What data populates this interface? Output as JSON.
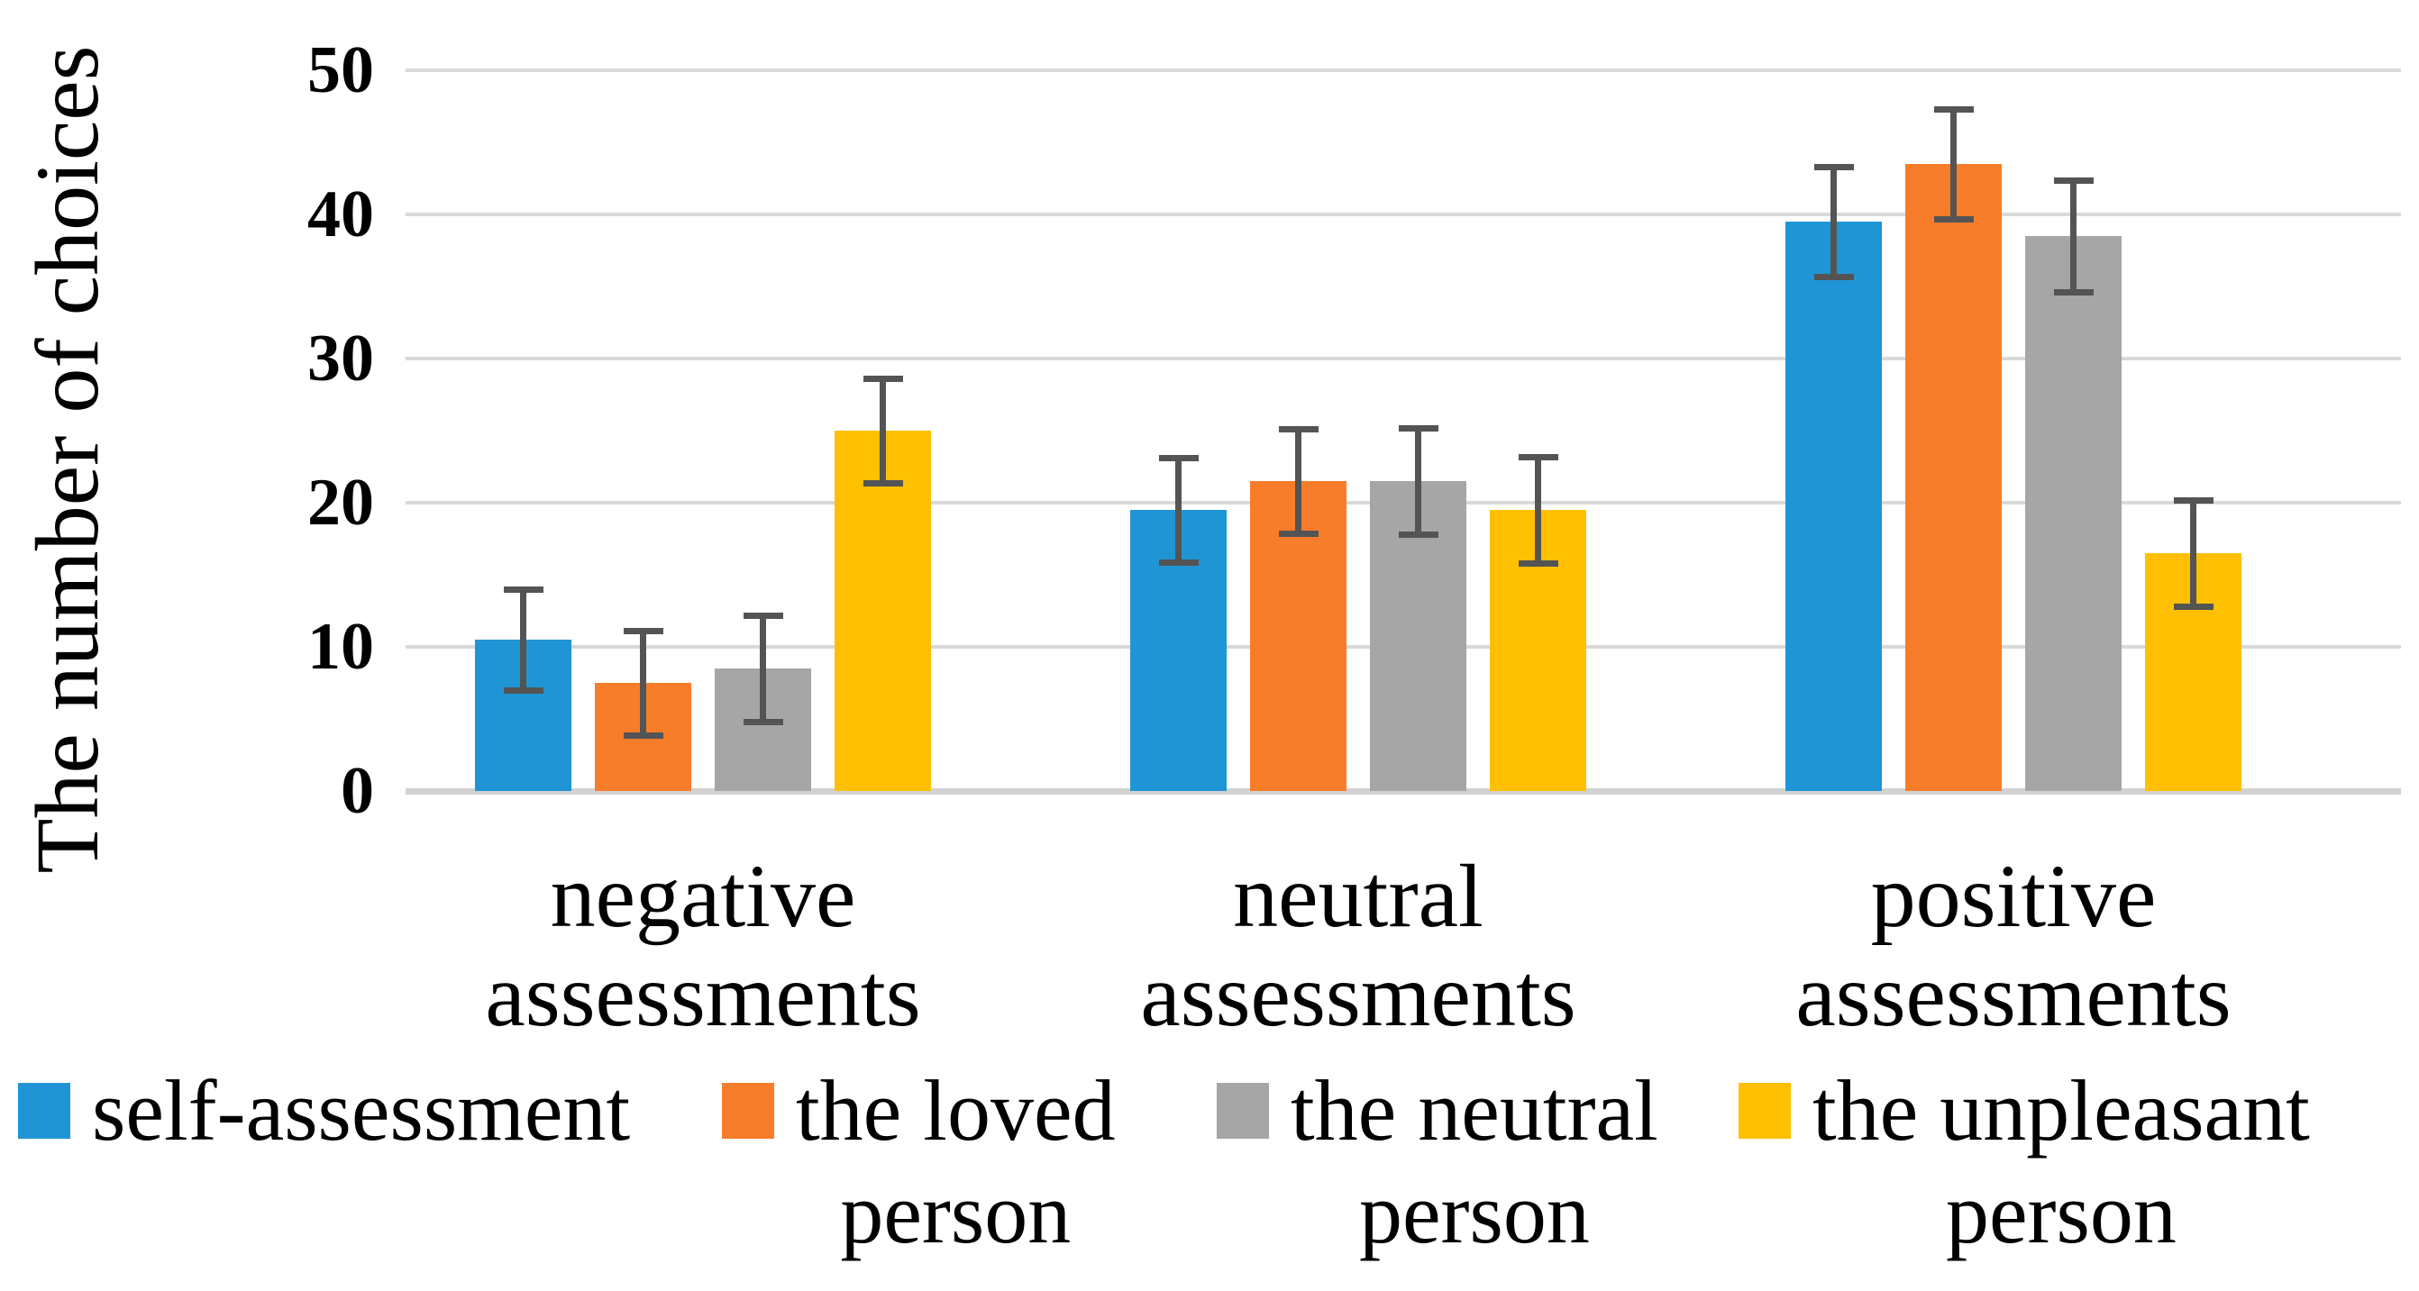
{
  "figure": {
    "ylabel": "The number of choices",
    "background_color": "#ffffff",
    "text_color": "#000000",
    "gridline_color": "#d9d9d9",
    "baseline_color": "#d2d2d2",
    "error_bar_color": "#545454"
  },
  "chart_data": {
    "type": "bar",
    "title": "",
    "xlabel": "",
    "ylabel": "The number of choices",
    "ylim": [
      0,
      50
    ],
    "yticks": [
      0,
      10,
      20,
      30,
      40,
      50
    ],
    "grid": true,
    "legend_position": "bottom",
    "categories": [
      "negative assessments",
      "neutral assessments",
      "positive assessments"
    ],
    "category_label_lines": [
      "negative\nassessments",
      "neutral\nassessments",
      "positive\nassessments"
    ],
    "series": [
      {
        "name": "self-assessment",
        "color": "#2095d5",
        "values": [
          10.5,
          19.5,
          39.5
        ],
        "errors": [
          3.5,
          3.6,
          3.8
        ]
      },
      {
        "name": "the loved person",
        "color": "#f87d2a",
        "values": [
          7.5,
          21.5,
          43.5
        ],
        "errors": [
          3.6,
          3.6,
          3.8
        ]
      },
      {
        "name": "the neutral person",
        "color": "#a6a6a6",
        "values": [
          8.5,
          21.5,
          38.5
        ],
        "errors": [
          3.7,
          3.7,
          3.9
        ]
      },
      {
        "name": "the unpleasant person",
        "color": "#ffc003",
        "values": [
          25.0,
          19.5,
          16.5
        ],
        "errors": [
          3.6,
          3.7,
          3.7
        ]
      }
    ],
    "legend_labels": [
      "self-assessment",
      "the loved\nperson",
      "the neutral\nperson",
      "the unpleasant\nperson"
    ]
  }
}
